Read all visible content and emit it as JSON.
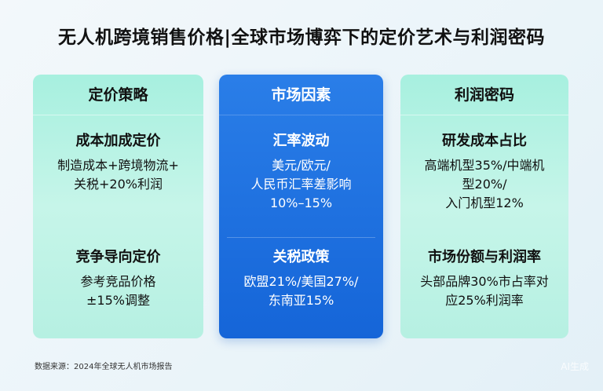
{
  "title": "无人机跨境销售价格|全球市场博弈下的定价艺术与利润密码",
  "columns": [
    {
      "header": "定价策略",
      "sections": [
        {
          "title": "成本加成定价",
          "text": "制造成本+跨境物流+\n关税+20%利润"
        },
        {
          "title": "竞争导向定价",
          "text": "参考竞品价格\n±15%调整"
        }
      ]
    },
    {
      "header": "市场因素",
      "sections": [
        {
          "title": "汇率波动",
          "text": "美元/欧元/\n人民币汇率差影响\n10%–15%"
        },
        {
          "title": "关税政策",
          "text": "欧盟21%/美国27%/\n东南亚15%"
        }
      ]
    },
    {
      "header": "利润密码",
      "sections": [
        {
          "title": "研发成本占比",
          "text": "高端机型35%/中端机\n型20%/\n入门机型12%"
        },
        {
          "title": "市场份额与利润率",
          "text": "头部品牌30%市占率对\n应25%利润率"
        }
      ]
    }
  ],
  "source": "数据来源：2024年全球无人机市场报告",
  "watermark": "AI生成",
  "colors": {
    "green": "#b6f0e2",
    "blue": "#1a6ddf"
  }
}
